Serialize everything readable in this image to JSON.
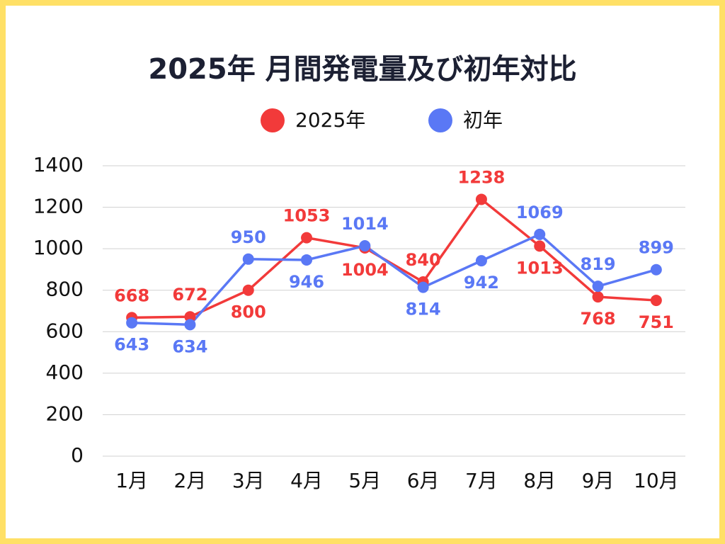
{
  "chart_data": {
    "type": "line",
    "title": "2025年 月間発電量及び初年対比",
    "categories": [
      "1月",
      "2月",
      "3月",
      "4月",
      "5月",
      "6月",
      "7月",
      "8月",
      "9月",
      "10月"
    ],
    "series": [
      {
        "name": "2025年",
        "color": "#f23a3a",
        "values": [
          668,
          672,
          800,
          1053,
          1004,
          840,
          1238,
          1013,
          768,
          751
        ]
      },
      {
        "name": "初年",
        "color": "#5a78f5",
        "values": [
          643,
          634,
          950,
          946,
          1014,
          814,
          942,
          1069,
          819,
          899
        ]
      }
    ],
    "ylim": [
      0,
      1400
    ],
    "yticks": [
      0,
      200,
      400,
      600,
      800,
      1000,
      1200,
      1400
    ],
    "grid": true
  }
}
